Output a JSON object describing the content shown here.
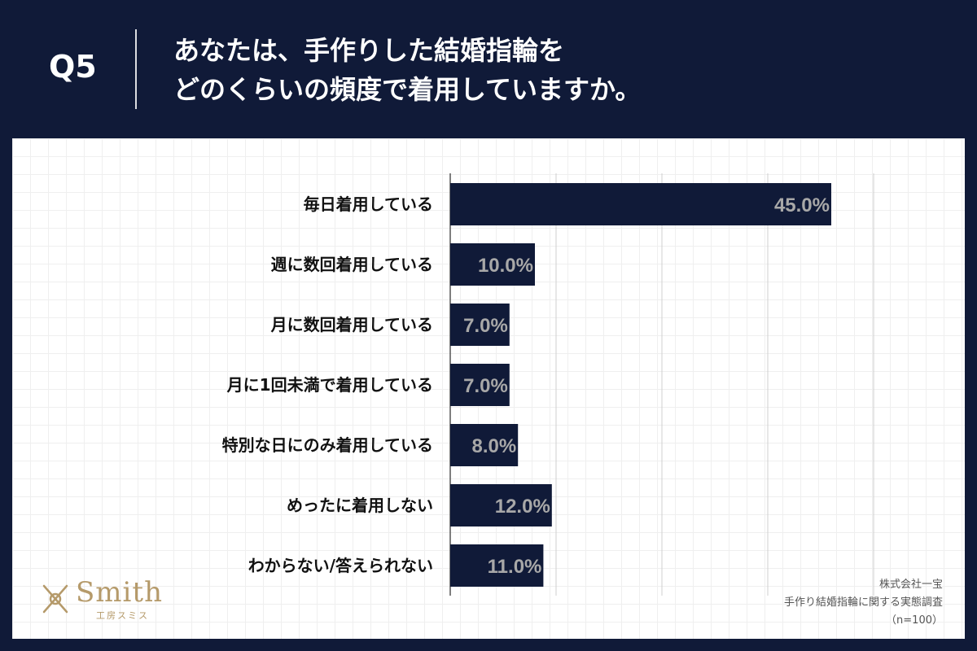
{
  "header": {
    "question": "Q5",
    "title_line1": "あなたは、手作りした結婚指輪を",
    "title_line2": "どのくらいの頻度で着用していますか。"
  },
  "logo": {
    "name": "Smith",
    "sub": "工房スミス",
    "icon": "crossed-tools-icon"
  },
  "source": {
    "line1": "株式会社一宝",
    "line2": "手作り結婚指輪に関する実態調査",
    "line3": "（n=100）"
  },
  "colors": {
    "bar": "#101a38",
    "label_text": "#a8a8a8",
    "background": "#101a38"
  },
  "chart_data": {
    "type": "bar",
    "orientation": "horizontal",
    "categories": [
      "毎日着用している",
      "週に数回着用している",
      "月に数回着用している",
      "月に1回未満で着用している",
      "特別な日にのみ着用している",
      "めったに着用しない",
      "わからない/答えられない"
    ],
    "values": [
      45.0,
      10.0,
      7.0,
      7.0,
      8.0,
      12.0,
      11.0
    ],
    "value_labels": [
      "45.0%",
      "10.0%",
      "7.0%",
      "7.0%",
      "8.0%",
      "12.0%",
      "11.0%"
    ],
    "xlim": [
      0,
      50
    ],
    "grid": true
  }
}
